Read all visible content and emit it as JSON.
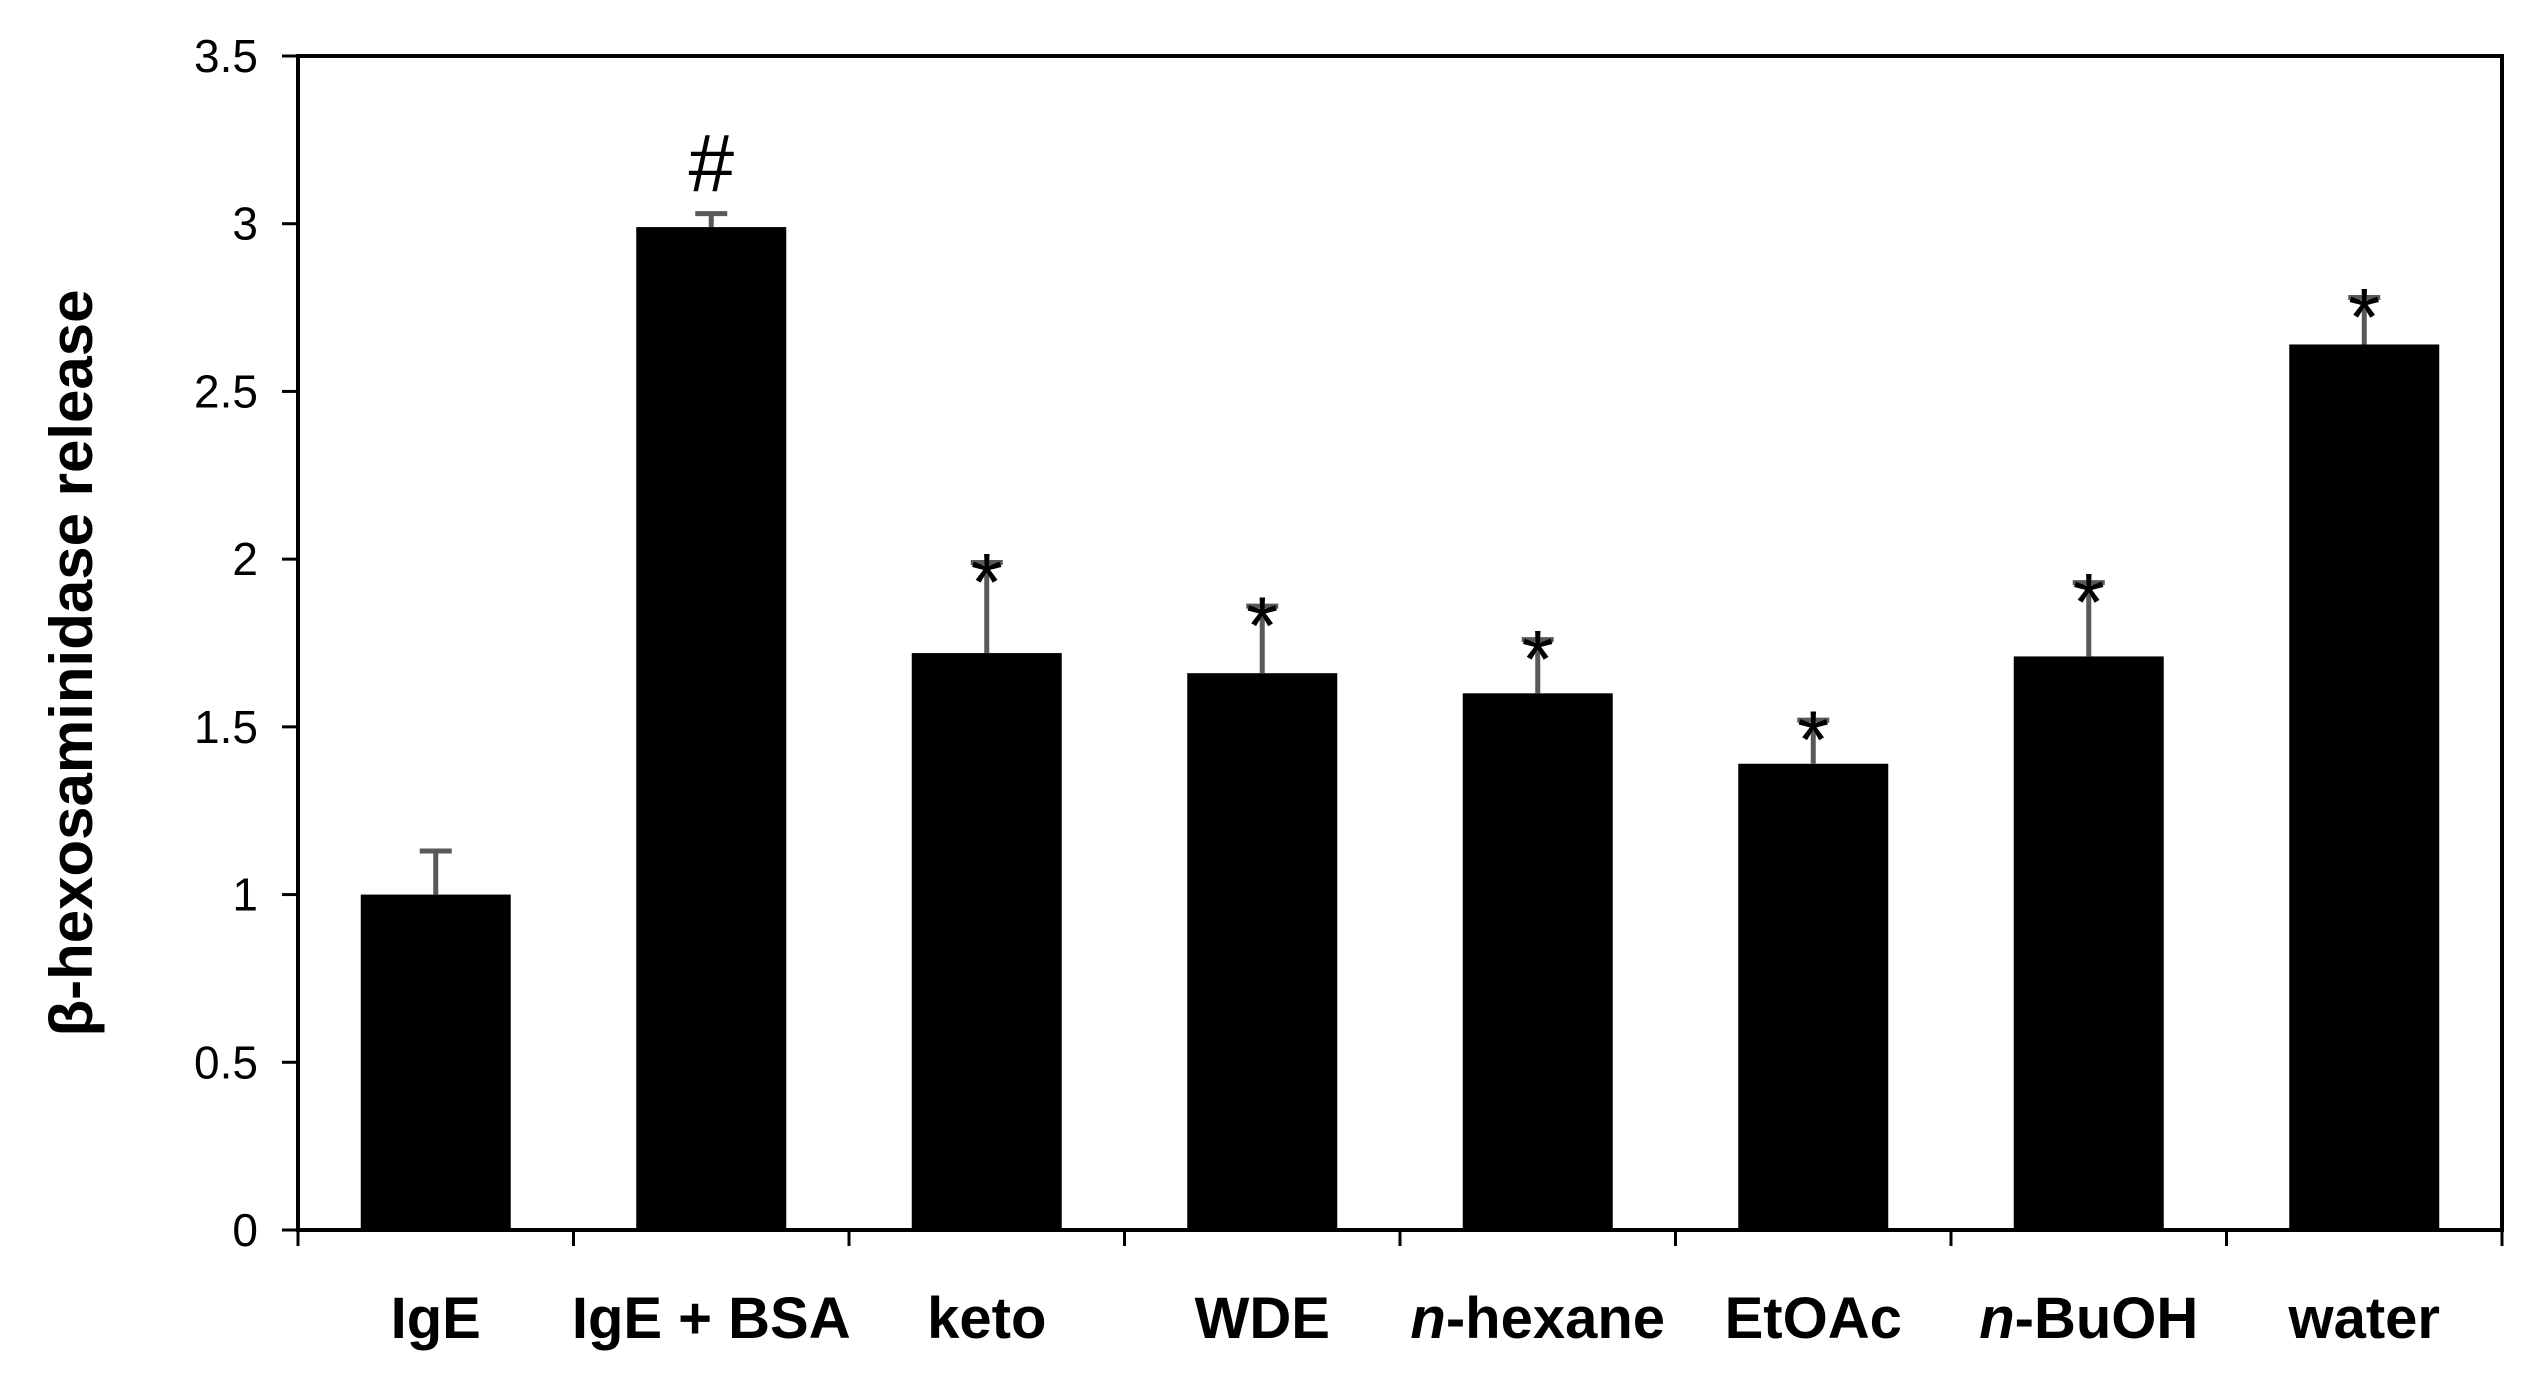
{
  "chart_data": {
    "type": "bar",
    "title": "",
    "xlabel": "",
    "ylabel": "β-hexosaminidase release",
    "ylim": [
      0,
      3.5
    ],
    "yticks": [
      0,
      0.5,
      1,
      1.5,
      2,
      2.5,
      3,
      3.5
    ],
    "ytick_labels": [
      "0",
      "0.5",
      "1",
      "1.5",
      "2",
      "2.5",
      "3",
      "3.5"
    ],
    "grid": false,
    "categories": [
      {
        "prefix": "",
        "text": "IgE"
      },
      {
        "prefix": "",
        "text": "IgE + BSA"
      },
      {
        "prefix": "",
        "text": "keto"
      },
      {
        "prefix": "",
        "text": "WDE"
      },
      {
        "prefix": "n",
        "text": "-hexane"
      },
      {
        "prefix": "",
        "text": "EtOAc"
      },
      {
        "prefix": "n",
        "text": "-BuOH"
      },
      {
        "prefix": "",
        "text": "water"
      }
    ],
    "values": [
      1.0,
      2.99,
      1.72,
      1.66,
      1.6,
      1.39,
      1.71,
      2.64
    ],
    "errors": [
      0.13,
      0.04,
      0.27,
      0.2,
      0.16,
      0.13,
      0.22,
      0.14
    ],
    "annotations": [
      "",
      "#",
      "*",
      "*",
      "*",
      "*",
      "*",
      "*"
    ],
    "bar_color": "#000000",
    "error_color": "#595959"
  }
}
